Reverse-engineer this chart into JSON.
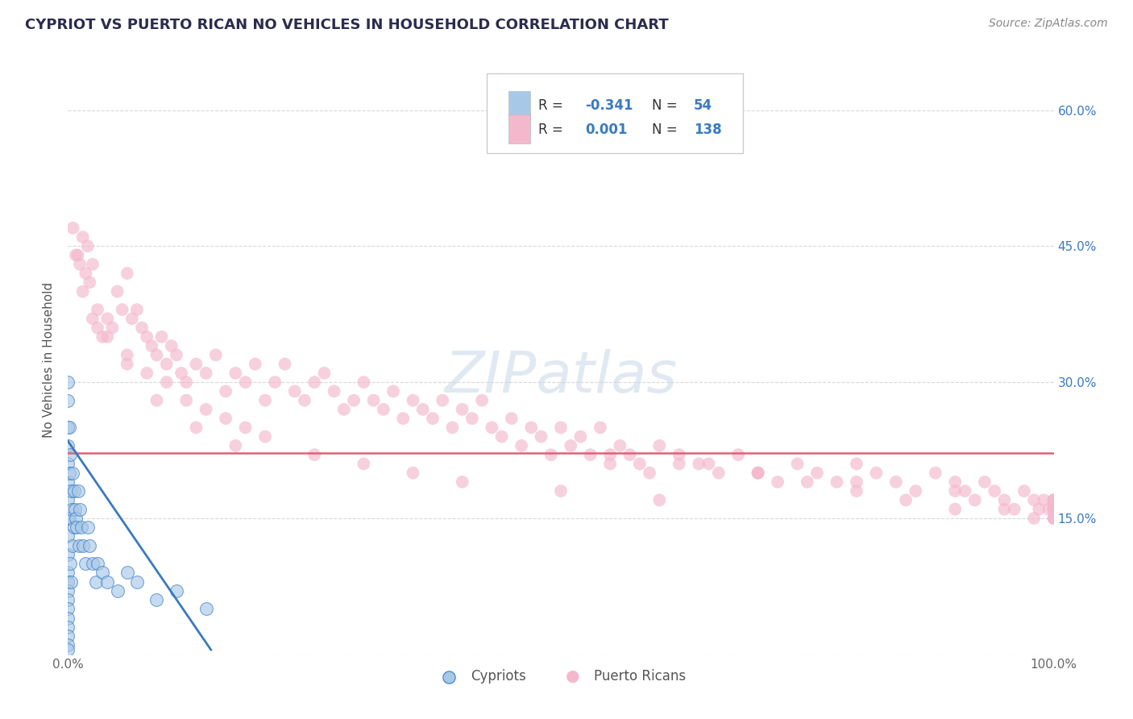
{
  "title": "CYPRIOT VS PUERTO RICAN NO VEHICLES IN HOUSEHOLD CORRELATION CHART",
  "source": "Source: ZipAtlas.com",
  "ylabel": "No Vehicles in Household",
  "xlim": [
    0,
    1.0
  ],
  "ylim": [
    0,
    0.65
  ],
  "color_cypriot": "#a8c8e8",
  "color_puerto_rican": "#f4b8cc",
  "color_cypriot_line": "#3a7abf",
  "color_puerto_rican_line": "#e0607a",
  "color_blue_text": "#3a7abf",
  "title_color": "#2c2c4e",
  "source_color": "#888888",
  "axis_label_color": "#555555",
  "background_color": "#ffffff",
  "grid_color": "#d8d8d8",
  "cypriot_scatter_x": [
    0.0,
    0.0,
    0.0,
    0.0,
    0.0,
    0.0,
    0.0,
    0.0,
    0.0,
    0.0,
    0.0,
    0.0,
    0.0,
    0.0,
    0.0,
    0.0,
    0.0,
    0.0,
    0.0,
    0.0,
    0.001,
    0.001,
    0.001,
    0.002,
    0.002,
    0.003,
    0.003,
    0.004,
    0.005,
    0.005,
    0.006,
    0.006,
    0.007,
    0.008,
    0.009,
    0.01,
    0.011,
    0.012,
    0.014,
    0.015,
    0.018,
    0.02,
    0.022,
    0.025,
    0.028,
    0.03,
    0.035,
    0.04,
    0.05,
    0.06,
    0.07,
    0.09,
    0.11,
    0.14
  ],
  "cypriot_scatter_y": [
    0.3,
    0.28,
    0.25,
    0.23,
    0.21,
    0.19,
    0.17,
    0.15,
    0.13,
    0.11,
    0.09,
    0.08,
    0.07,
    0.06,
    0.05,
    0.04,
    0.03,
    0.02,
    0.01,
    0.005,
    0.25,
    0.2,
    0.15,
    0.22,
    0.1,
    0.18,
    0.08,
    0.16,
    0.2,
    0.12,
    0.18,
    0.14,
    0.16,
    0.15,
    0.14,
    0.18,
    0.12,
    0.16,
    0.14,
    0.12,
    0.1,
    0.14,
    0.12,
    0.1,
    0.08,
    0.1,
    0.09,
    0.08,
    0.07,
    0.09,
    0.08,
    0.06,
    0.07,
    0.05
  ],
  "puerto_rican_scatter_x": [
    0.005,
    0.01,
    0.012,
    0.015,
    0.018,
    0.02,
    0.022,
    0.025,
    0.03,
    0.035,
    0.04,
    0.045,
    0.05,
    0.055,
    0.06,
    0.065,
    0.07,
    0.075,
    0.08,
    0.085,
    0.09,
    0.095,
    0.1,
    0.105,
    0.11,
    0.115,
    0.12,
    0.13,
    0.14,
    0.15,
    0.16,
    0.17,
    0.18,
    0.19,
    0.2,
    0.21,
    0.22,
    0.23,
    0.24,
    0.25,
    0.26,
    0.27,
    0.28,
    0.29,
    0.3,
    0.31,
    0.32,
    0.33,
    0.34,
    0.35,
    0.36,
    0.37,
    0.38,
    0.39,
    0.4,
    0.41,
    0.42,
    0.43,
    0.44,
    0.45,
    0.46,
    0.47,
    0.48,
    0.49,
    0.5,
    0.51,
    0.52,
    0.53,
    0.54,
    0.55,
    0.56,
    0.57,
    0.58,
    0.59,
    0.6,
    0.62,
    0.64,
    0.66,
    0.68,
    0.7,
    0.72,
    0.74,
    0.76,
    0.78,
    0.8,
    0.82,
    0.84,
    0.86,
    0.88,
    0.9,
    0.91,
    0.92,
    0.93,
    0.94,
    0.95,
    0.96,
    0.97,
    0.98,
    0.985,
    0.99,
    0.995,
    1.0,
    1.0,
    1.0,
    1.0,
    1.0,
    1.0,
    1.0,
    1.0,
    1.0,
    1.0,
    1.0,
    0.008,
    0.015,
    0.025,
    0.04,
    0.06,
    0.08,
    0.1,
    0.12,
    0.14,
    0.16,
    0.18,
    0.2,
    0.25,
    0.3,
    0.35,
    0.4,
    0.5,
    0.6,
    0.65,
    0.7,
    0.75,
    0.8,
    0.85,
    0.9,
    0.03,
    0.06,
    0.09,
    0.13,
    0.17,
    0.55,
    0.62,
    0.7,
    0.8,
    0.9,
    0.95,
    0.98,
    1.0
  ],
  "puerto_rican_scatter_y": [
    0.47,
    0.44,
    0.43,
    0.46,
    0.42,
    0.45,
    0.41,
    0.43,
    0.38,
    0.35,
    0.37,
    0.36,
    0.4,
    0.38,
    0.42,
    0.37,
    0.38,
    0.36,
    0.35,
    0.34,
    0.33,
    0.35,
    0.32,
    0.34,
    0.33,
    0.31,
    0.3,
    0.32,
    0.31,
    0.33,
    0.29,
    0.31,
    0.3,
    0.32,
    0.28,
    0.3,
    0.32,
    0.29,
    0.28,
    0.3,
    0.31,
    0.29,
    0.27,
    0.28,
    0.3,
    0.28,
    0.27,
    0.29,
    0.26,
    0.28,
    0.27,
    0.26,
    0.28,
    0.25,
    0.27,
    0.26,
    0.28,
    0.25,
    0.24,
    0.26,
    0.23,
    0.25,
    0.24,
    0.22,
    0.25,
    0.23,
    0.24,
    0.22,
    0.25,
    0.21,
    0.23,
    0.22,
    0.21,
    0.2,
    0.23,
    0.22,
    0.21,
    0.2,
    0.22,
    0.2,
    0.19,
    0.21,
    0.2,
    0.19,
    0.21,
    0.2,
    0.19,
    0.18,
    0.2,
    0.19,
    0.18,
    0.17,
    0.19,
    0.18,
    0.17,
    0.16,
    0.18,
    0.17,
    0.16,
    0.17,
    0.16,
    0.17,
    0.16,
    0.15,
    0.16,
    0.17,
    0.16,
    0.15,
    0.16,
    0.17,
    0.16,
    0.15,
    0.44,
    0.4,
    0.37,
    0.35,
    0.33,
    0.31,
    0.3,
    0.28,
    0.27,
    0.26,
    0.25,
    0.24,
    0.22,
    0.21,
    0.2,
    0.19,
    0.18,
    0.17,
    0.21,
    0.2,
    0.19,
    0.18,
    0.17,
    0.16,
    0.36,
    0.32,
    0.28,
    0.25,
    0.23,
    0.22,
    0.21,
    0.2,
    0.19,
    0.18,
    0.16,
    0.15,
    0.16
  ],
  "cypriot_trend_x": [
    0.0,
    0.145
  ],
  "cypriot_trend_y": [
    0.235,
    0.005
  ],
  "puerto_rican_hline_y": 0.222,
  "marker_size_cypriot": 130,
  "marker_size_pr": 130,
  "alpha_cypriot": 0.65,
  "alpha_pr": 0.65
}
